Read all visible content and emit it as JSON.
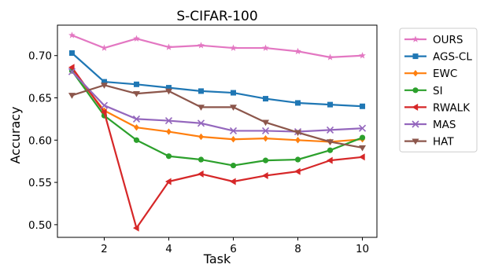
{
  "chart_data": {
    "type": "line",
    "title": "S-CIFAR-100",
    "xlabel": "Task",
    "ylabel": "Accuracy",
    "xlim": [
      0.55,
      10.45
    ],
    "ylim": [
      0.485,
      0.736
    ],
    "x_ticks": [
      2,
      4,
      6,
      8,
      10
    ],
    "x_tick_labels": [
      "2",
      "4",
      "6",
      "8",
      "10"
    ],
    "y_ticks": [
      0.5,
      0.55,
      0.6,
      0.65,
      0.7
    ],
    "y_tick_labels": [
      "0.50",
      "0.55",
      "0.60",
      "0.65",
      "0.70"
    ],
    "grid": false,
    "legend_position": "outside-right",
    "x": [
      1,
      2,
      3,
      4,
      5,
      6,
      7,
      8,
      9,
      10
    ],
    "series": [
      {
        "name": "OURS",
        "color": "#e377c2",
        "marker": "star",
        "values": [
          0.724,
          0.709,
          0.72,
          0.71,
          0.712,
          0.709,
          0.709,
          0.705,
          0.698,
          0.7
        ]
      },
      {
        "name": "AGS-CL",
        "color": "#1f77b4",
        "marker": "square",
        "values": [
          0.703,
          0.669,
          0.666,
          0.662,
          0.658,
          0.656,
          0.649,
          0.644,
          0.642,
          0.64
        ]
      },
      {
        "name": "EWC",
        "color": "#ff7f0e",
        "marker": "diamond",
        "values": [
          0.683,
          0.635,
          0.615,
          0.61,
          0.604,
          0.601,
          0.602,
          0.6,
          0.598,
          0.601
        ]
      },
      {
        "name": "SI",
        "color": "#2ca02c",
        "marker": "circle",
        "values": [
          0.682,
          0.629,
          0.6,
          0.581,
          0.577,
          0.57,
          0.576,
          0.577,
          0.588,
          0.603
        ]
      },
      {
        "name": "RWALK",
        "color": "#d62728",
        "marker": "triangle-left",
        "values": [
          0.686,
          0.633,
          0.496,
          0.551,
          0.56,
          0.551,
          0.558,
          0.563,
          0.576,
          0.58
        ]
      },
      {
        "name": "MAS",
        "color": "#9467bd",
        "marker": "x",
        "values": [
          0.681,
          0.641,
          0.625,
          0.623,
          0.62,
          0.611,
          0.611,
          0.61,
          0.612,
          0.614
        ]
      },
      {
        "name": "HAT",
        "color": "#8c564b",
        "marker": "triangle-down",
        "values": [
          0.653,
          0.665,
          0.655,
          0.658,
          0.639,
          0.639,
          0.621,
          0.609,
          0.598,
          0.591
        ]
      }
    ]
  }
}
